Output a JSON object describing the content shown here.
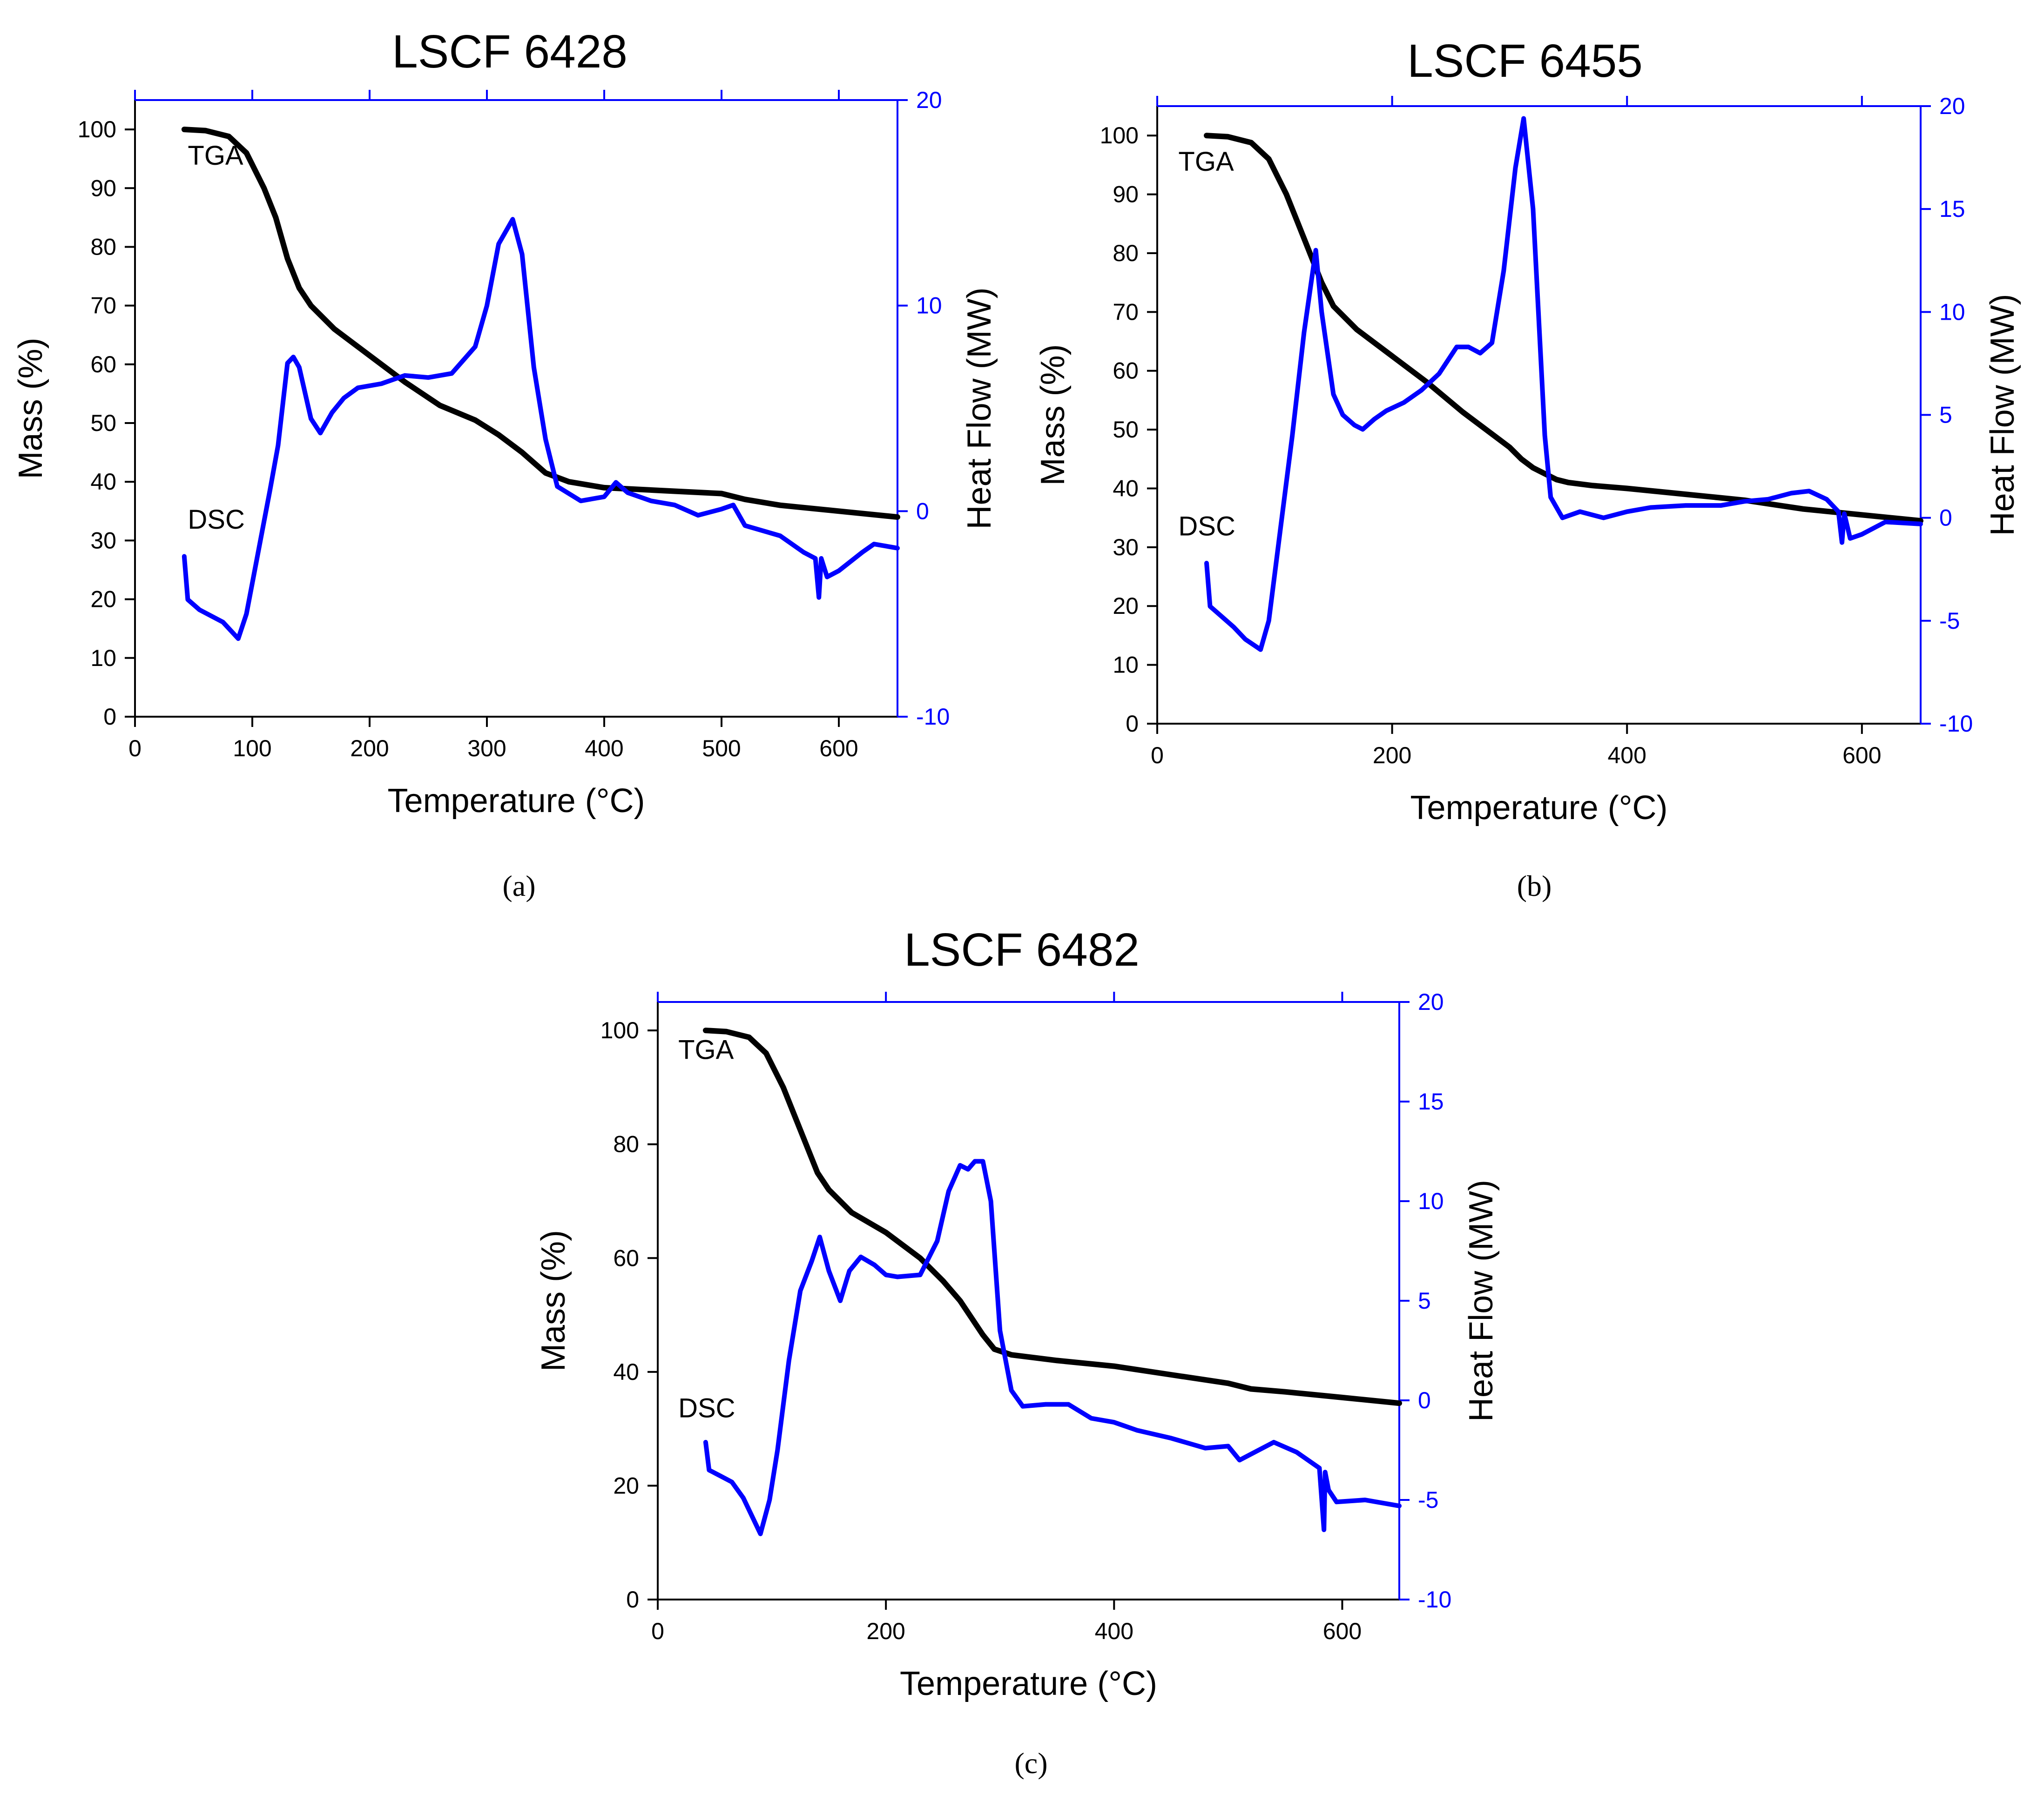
{
  "colors": {
    "tga": "#000000",
    "dsc": "#0000ff",
    "axis_left": "#000000",
    "axis_right": "#0000ff"
  },
  "chart_data": [
    {
      "id": "a",
      "type": "line",
      "title": "LSCF 6428",
      "caption": "(a)",
      "xlabel": "Temperature (°C)",
      "ylabel": "Mass (%)",
      "y2label": "Heat Flow (MW)",
      "xlim": [
        0,
        650
      ],
      "ylim": [
        0,
        105
      ],
      "y2lim": [
        -10,
        20
      ],
      "xticks": [
        0,
        100,
        200,
        300,
        400,
        500,
        600
      ],
      "yticks": [
        0,
        10,
        20,
        30,
        40,
        50,
        60,
        70,
        80,
        90,
        100
      ],
      "y2ticks": [
        -10,
        0,
        10,
        20
      ],
      "annotations": [
        {
          "text": "TGA",
          "x": 45,
          "y": 94
        },
        {
          "text": "DSC",
          "x": 45,
          "y": 32
        }
      ],
      "series": [
        {
          "name": "TGA",
          "axis": "left",
          "x": [
            42,
            60,
            80,
            95,
            110,
            120,
            130,
            140,
            150,
            170,
            200,
            230,
            260,
            290,
            310,
            330,
            350,
            370,
            400,
            450,
            500,
            520,
            550,
            600,
            650
          ],
          "y": [
            100,
            99.8,
            98.8,
            96,
            90,
            85,
            78,
            73,
            70,
            66,
            61.5,
            57,
            53,
            50.5,
            48,
            45,
            41.5,
            40,
            39,
            38.5,
            38,
            37,
            36,
            35,
            34
          ]
        },
        {
          "name": "DSC",
          "axis": "right",
          "x": [
            42,
            45,
            55,
            65,
            75,
            88,
            95,
            105,
            115,
            122,
            130,
            135,
            140,
            150,
            158,
            168,
            178,
            190,
            210,
            230,
            250,
            270,
            290,
            300,
            310,
            322,
            330,
            340,
            350,
            360,
            380,
            400,
            410,
            420,
            440,
            460,
            480,
            500,
            510,
            520,
            550,
            570,
            580,
            583,
            585,
            590,
            600,
            620,
            630,
            650
          ],
          "y": [
            -2.2,
            -4.3,
            -4.8,
            -5.1,
            -5.4,
            -6.2,
            -5,
            -2,
            1,
            3.2,
            7.2,
            7.5,
            7,
            4.5,
            3.8,
            4.8,
            5.5,
            6,
            6.2,
            6.6,
            6.5,
            6.7,
            8,
            10,
            13,
            14.2,
            12.5,
            7,
            3.5,
            1.2,
            0.5,
            0.7,
            1.4,
            0.9,
            0.5,
            0.3,
            -0.2,
            0.1,
            0.3,
            -0.7,
            -1.2,
            -2,
            -2.3,
            -4.2,
            -2.3,
            -3.2,
            -2.9,
            -2,
            -1.6,
            -1.8
          ]
        }
      ]
    },
    {
      "id": "b",
      "type": "line",
      "title": "LSCF 6455",
      "caption": "(b)",
      "xlabel": "Temperature (°C)",
      "ylabel": "Mass (%)",
      "y2label": "Heat Flow (MW)",
      "xlim": [
        0,
        650
      ],
      "ylim": [
        0,
        105
      ],
      "y2lim": [
        -10,
        20
      ],
      "xticks": [
        0,
        200,
        400,
        600
      ],
      "yticks": [
        0,
        10,
        20,
        30,
        40,
        50,
        60,
        70,
        80,
        90,
        100
      ],
      "y2ticks": [
        -10,
        -5,
        0,
        5,
        10,
        15,
        20
      ],
      "annotations": [
        {
          "text": "TGA",
          "x": 18,
          "y": 94
        },
        {
          "text": "DSC",
          "x": 18,
          "y": 32
        }
      ],
      "series": [
        {
          "name": "TGA",
          "axis": "left",
          "x": [
            42,
            60,
            80,
            95,
            110,
            120,
            130,
            140,
            150,
            170,
            200,
            230,
            260,
            290,
            300,
            310,
            320,
            330,
            340,
            350,
            370,
            400,
            450,
            500,
            550,
            600,
            650
          ],
          "y": [
            100,
            99.8,
            98.8,
            96,
            90,
            85,
            80,
            75,
            71,
            67,
            62.5,
            58,
            53,
            48.5,
            47,
            45,
            43.5,
            42.5,
            41.5,
            41,
            40.5,
            40,
            39,
            38,
            36.5,
            35.5,
            34.5
          ]
        },
        {
          "name": "DSC",
          "axis": "right",
          "x": [
            42,
            45,
            55,
            65,
            75,
            88,
            95,
            105,
            115,
            125,
            135,
            140,
            150,
            158,
            168,
            175,
            185,
            195,
            210,
            225,
            240,
            255,
            265,
            275,
            285,
            295,
            305,
            312,
            320,
            330,
            335,
            345,
            360,
            380,
            400,
            420,
            450,
            480,
            500,
            520,
            540,
            555,
            570,
            580,
            583,
            585,
            590,
            600,
            620,
            650
          ],
          "y": [
            -2.2,
            -4.3,
            -4.8,
            -5.3,
            -5.9,
            -6.4,
            -5,
            -0.5,
            4,
            9,
            13,
            10,
            6,
            5,
            4.5,
            4.3,
            4.8,
            5.2,
            5.6,
            6.2,
            7,
            8.3,
            8.3,
            8.0,
            8.5,
            12,
            17,
            19.4,
            15,
            4,
            1,
            0,
            0.3,
            0,
            0.3,
            0.5,
            0.6,
            0.6,
            0.8,
            0.9,
            1.2,
            1.3,
            0.9,
            0.3,
            -1.2,
            0.2,
            -1,
            -0.8,
            -0.2,
            -0.3
          ]
        }
      ]
    },
    {
      "id": "c",
      "type": "line",
      "title": "LSCF 6482",
      "caption": "(c)",
      "xlabel": "Temperature (°C)",
      "ylabel": "Mass (%)",
      "y2label": "Heat Flow (MW)",
      "xlim": [
        0,
        650
      ],
      "ylim": [
        0,
        105
      ],
      "y2lim": [
        -10,
        20
      ],
      "xticks": [
        0,
        200,
        400,
        600
      ],
      "yticks": [
        0,
        20,
        40,
        60,
        80,
        100
      ],
      "y2ticks": [
        -10,
        -5,
        0,
        5,
        10,
        15,
        20
      ],
      "annotations": [
        {
          "text": "TGA",
          "x": 18,
          "y": 95
        },
        {
          "text": "DSC",
          "x": 18,
          "y": 32
        }
      ],
      "series": [
        {
          "name": "TGA",
          "axis": "left",
          "x": [
            42,
            60,
            80,
            95,
            110,
            120,
            130,
            140,
            150,
            170,
            200,
            230,
            250,
            265,
            275,
            285,
            295,
            310,
            330,
            350,
            400,
            450,
            500,
            520,
            550,
            600,
            650
          ],
          "y": [
            100,
            99.8,
            98.8,
            96,
            90,
            85,
            80,
            75,
            72,
            68,
            64.5,
            60,
            56,
            52.5,
            49.5,
            46.5,
            44,
            43,
            42.5,
            42,
            41,
            39.5,
            38,
            37,
            36.5,
            35.5,
            34.5
          ]
        },
        {
          "name": "DSC",
          "axis": "right",
          "x": [
            42,
            45,
            55,
            65,
            75,
            90,
            98,
            105,
            115,
            125,
            135,
            142,
            150,
            160,
            168,
            178,
            190,
            200,
            210,
            230,
            245,
            255,
            265,
            272,
            278,
            285,
            292,
            300,
            310,
            320,
            340,
            360,
            380,
            400,
            420,
            450,
            480,
            500,
            510,
            520,
            540,
            560,
            580,
            584,
            585,
            588,
            595,
            620,
            650
          ],
          "y": [
            -2.1,
            -3.5,
            -3.8,
            -4.1,
            -4.9,
            -6.7,
            -5,
            -2.5,
            2,
            5.5,
            7,
            8.2,
            6.5,
            5,
            6.5,
            7.2,
            6.8,
            6.3,
            6.2,
            6.3,
            8,
            10.5,
            11.8,
            11.6,
            12,
            12,
            10,
            3.5,
            0.5,
            -0.3,
            -0.2,
            -0.2,
            -0.9,
            -1.1,
            -1.5,
            -1.9,
            -2.4,
            -2.3,
            -3,
            -2.7,
            -2.1,
            -2.6,
            -3.4,
            -6.5,
            -3.6,
            -4.5,
            -5.1,
            -5,
            -5.3
          ]
        }
      ]
    }
  ]
}
